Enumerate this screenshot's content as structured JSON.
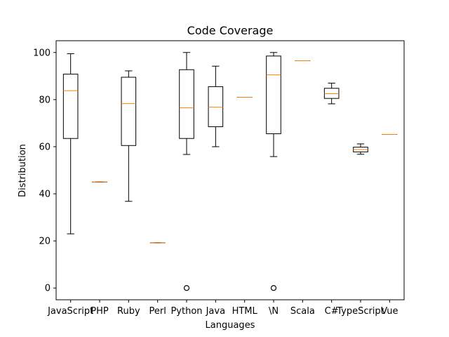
{
  "chart_data": {
    "type": "box",
    "title": "Code Coverage",
    "xlabel": "Languages",
    "ylabel": "Distribution",
    "ylim": [
      -5,
      105
    ],
    "yticks": [
      0,
      20,
      40,
      60,
      80,
      100
    ],
    "grid": false,
    "colors": {
      "box": "#000000",
      "median": "#ff7f0e",
      "outlier": "#000000"
    },
    "categories": [
      "JavaScript",
      "PHP",
      "Ruby",
      "Perl",
      "Python",
      "Java",
      "HTML",
      "\\N",
      "Scala",
      "C#",
      "TypeScript",
      "Vue"
    ],
    "boxes": [
      {
        "whislo": 23,
        "q1": 63.5,
        "med": 83.8,
        "q3": 90.8,
        "whishi": 99.5,
        "fliers": []
      },
      {
        "whislo": 45,
        "q1": 45,
        "med": 45,
        "q3": 45,
        "whishi": 45,
        "fliers": []
      },
      {
        "whislo": 36.8,
        "q1": 60.5,
        "med": 78.3,
        "q3": 89.5,
        "whishi": 92.2,
        "fliers": []
      },
      {
        "whislo": 19.2,
        "q1": 19.2,
        "med": 19.2,
        "q3": 19.2,
        "whishi": 19.2,
        "fliers": []
      },
      {
        "whislo": 56.7,
        "q1": 63.5,
        "med": 76.5,
        "q3": 92.7,
        "whishi": 100,
        "fliers": [
          0
        ]
      },
      {
        "whislo": 60,
        "q1": 68.5,
        "med": 76.8,
        "q3": 85.5,
        "whishi": 94.2,
        "fliers": []
      },
      {
        "whislo": 81,
        "q1": 81,
        "med": 81,
        "q3": 81,
        "whishi": 81,
        "fliers": []
      },
      {
        "whislo": 55.8,
        "q1": 65.5,
        "med": 90.5,
        "q3": 98.5,
        "whishi": 100,
        "fliers": [
          0
        ]
      },
      {
        "whislo": 96.5,
        "q1": 96.5,
        "med": 96.5,
        "q3": 96.5,
        "whishi": 96.5,
        "fliers": []
      },
      {
        "whislo": 78.2,
        "q1": 80.5,
        "med": 82.5,
        "q3": 84.8,
        "whishi": 87,
        "fliers": []
      },
      {
        "whislo": 56.8,
        "q1": 57.8,
        "med": 58.8,
        "q3": 59.8,
        "whishi": 61.2,
        "fliers": []
      },
      {
        "whislo": 65.2,
        "q1": 65.2,
        "med": 65.2,
        "q3": 65.2,
        "whishi": 65.2,
        "fliers": []
      }
    ]
  }
}
